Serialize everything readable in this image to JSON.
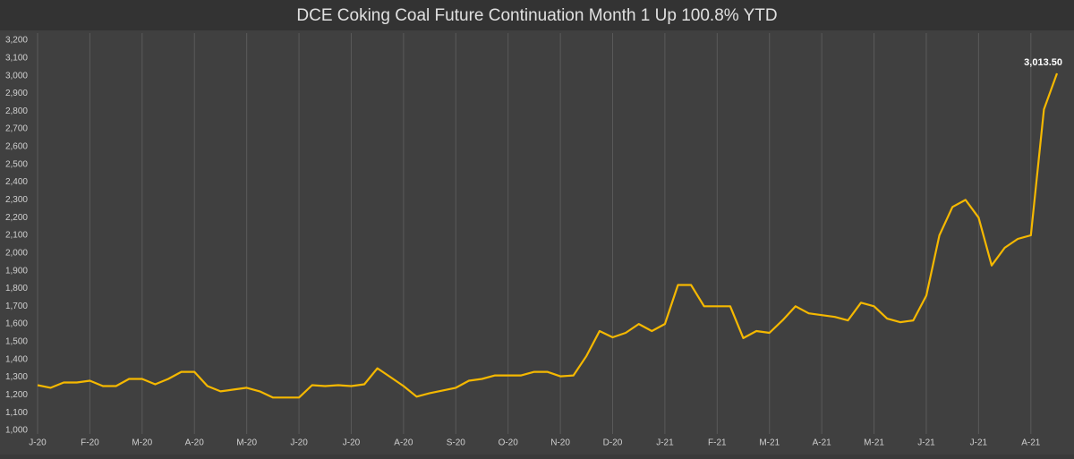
{
  "chart_data": {
    "type": "line",
    "title": "DCE Coking Coal Future Continuation Month 1 Up 100.8% YTD",
    "categories": [
      "J-20",
      null,
      null,
      null,
      "F-20",
      null,
      null,
      null,
      "M-20",
      null,
      null,
      null,
      "A-20",
      null,
      null,
      null,
      "M-20",
      null,
      null,
      null,
      "J-20",
      null,
      null,
      null,
      "J-20",
      null,
      null,
      null,
      "A-20",
      null,
      null,
      null,
      "S-20",
      null,
      null,
      null,
      "O-20",
      null,
      null,
      null,
      "N-20",
      null,
      null,
      null,
      "D-20",
      null,
      null,
      null,
      "J-21",
      null,
      null,
      null,
      "F-21",
      null,
      null,
      null,
      "M-21",
      null,
      null,
      null,
      "A-21",
      null,
      null,
      null,
      "M-21",
      null,
      null,
      null,
      "J-21",
      null,
      null,
      null,
      "J-21",
      null,
      null,
      null,
      "A-21",
      null,
      null
    ],
    "series": [
      {
        "name": "DCE Coking Coal",
        "color": "#f5b800",
        "values": [
          1255,
          1240,
          1270,
          1270,
          1280,
          1250,
          1250,
          1290,
          1290,
          1260,
          1290,
          1330,
          1330,
          1250,
          1220,
          1230,
          1240,
          1220,
          1185,
          1185,
          1185,
          1255,
          1250,
          1255,
          1250,
          1260,
          1350,
          1300,
          1250,
          1190,
          1210,
          1225,
          1240,
          1280,
          1290,
          1310,
          1310,
          1310,
          1330,
          1330,
          1305,
          1310,
          1420,
          1560,
          1525,
          1550,
          1600,
          1560,
          1600,
          1820,
          1820,
          1700,
          1700,
          1700,
          1520,
          1560,
          1550,
          1620,
          1700,
          1660,
          1650,
          1640,
          1620,
          1720,
          1700,
          1630,
          1610,
          1620,
          1760,
          2100,
          2260,
          2300,
          2200,
          1930,
          2030,
          2080,
          2100,
          2810,
          3013.5
        ],
        "value_labels": [
          null,
          null,
          null,
          null,
          null,
          null,
          null,
          null,
          null,
          null,
          null,
          null,
          null,
          null,
          null,
          null,
          null,
          null,
          null,
          null,
          null,
          null,
          null,
          null,
          null,
          null,
          null,
          null,
          null,
          null,
          null,
          null,
          null,
          null,
          null,
          null,
          null,
          null,
          null,
          null,
          null,
          null,
          null,
          null,
          null,
          null,
          null,
          null,
          null,
          null,
          null,
          null,
          null,
          null,
          null,
          null,
          null,
          null,
          null,
          null,
          null,
          null,
          null,
          null,
          null,
          null,
          null,
          null,
          null,
          null,
          null,
          null,
          null,
          null,
          null,
          null,
          null,
          null,
          "3,013.50"
        ]
      }
    ],
    "ylim": [
      1000,
      3200
    ],
    "yticks": [
      {
        "value": 1000,
        "label": "1,000"
      },
      {
        "value": 1100,
        "label": "1,100"
      },
      {
        "value": 1200,
        "label": "1,200"
      },
      {
        "value": 1300,
        "label": "1,300"
      },
      {
        "value": 1400,
        "label": "1,400"
      },
      {
        "value": 1500,
        "label": "1,500"
      },
      {
        "value": 1600,
        "label": "1,600"
      },
      {
        "value": 1700,
        "label": "1,700"
      },
      {
        "value": 1800,
        "label": "1,800"
      },
      {
        "value": 1900,
        "label": "1,900"
      },
      {
        "value": 2000,
        "label": "2,000"
      },
      {
        "value": 2100,
        "label": "2,100"
      },
      {
        "value": 2200,
        "label": "2,200"
      },
      {
        "value": 2300,
        "label": "2,300"
      },
      {
        "value": 2400,
        "label": "2,400"
      },
      {
        "value": 2500,
        "label": "2,500"
      },
      {
        "value": 2600,
        "label": "2,600"
      },
      {
        "value": 2700,
        "label": "2,700"
      },
      {
        "value": 2800,
        "label": "2,800"
      },
      {
        "value": 2900,
        "label": "2,900"
      },
      {
        "value": 3000,
        "label": "3,000"
      },
      {
        "value": 3100,
        "label": "3,100"
      },
      {
        "value": 3200,
        "label": "3,200"
      }
    ],
    "grid": true
  }
}
